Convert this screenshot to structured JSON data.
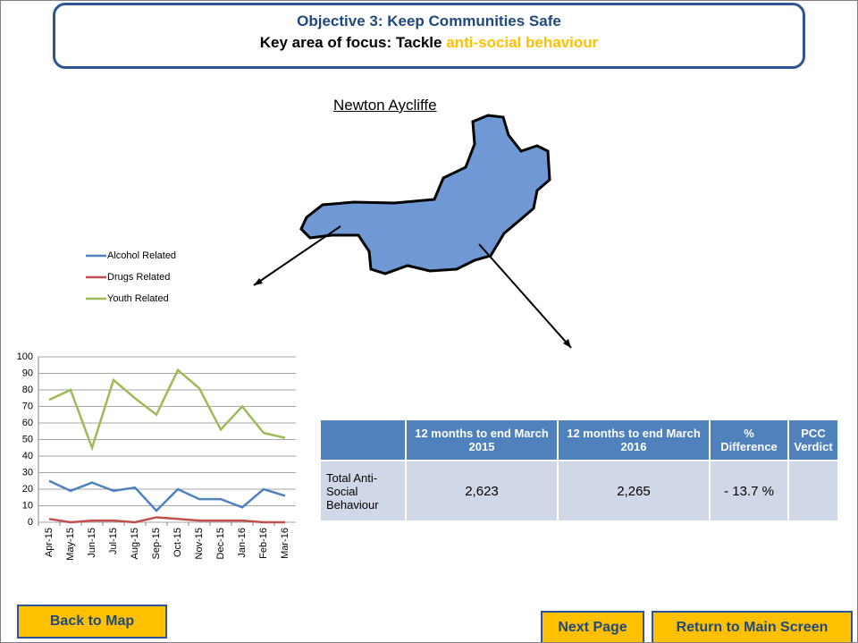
{
  "header": {
    "title": "Objective 3: Keep Communities Safe",
    "focus_prefix": "Key area of focus: Tackle",
    "focus_highlight": "anti-social behaviour"
  },
  "map": {
    "label": "Newton Aycliffe"
  },
  "chart_data": {
    "type": "line",
    "categories": [
      "Apr-15",
      "May-15",
      "Jun-15",
      "Jul-15",
      "Aug-15",
      "Sep-15",
      "Oct-15",
      "Nov-15",
      "Dec-15",
      "Jan-16",
      "Feb-16",
      "Mar-16"
    ],
    "series": [
      {
        "name": "Alcohol Related",
        "color": "#4f81bd",
        "values": [
          25,
          19,
          24,
          19,
          21,
          7,
          20,
          14,
          14,
          9,
          20,
          16
        ]
      },
      {
        "name": "Drugs Related",
        "color": "#c0504d",
        "values": [
          2,
          0,
          1,
          1,
          0,
          3,
          2,
          1,
          1,
          1,
          0,
          0
        ]
      },
      {
        "name": "Youth Related",
        "color": "#9bbb59",
        "values": [
          74,
          80,
          45,
          86,
          75,
          65,
          92,
          81,
          56,
          70,
          54,
          51
        ]
      }
    ],
    "ylim": [
      0,
      100
    ],
    "yticks": [
      0,
      10,
      20,
      30,
      40,
      50,
      60,
      70,
      80,
      90,
      100
    ],
    "grid": true
  },
  "table": {
    "headers": [
      "12 months to end March 2015",
      "12 months to end March 2016",
      "% Difference",
      "PCC Verdict"
    ],
    "rows": [
      [
        "Total Anti-Social Behaviour",
        "2,623",
        "2,265",
        "- 13.7 %"
      ]
    ]
  },
  "buttons": [
    "Back to Map",
    "Next Page",
    "Return to Main Screen"
  ]
}
